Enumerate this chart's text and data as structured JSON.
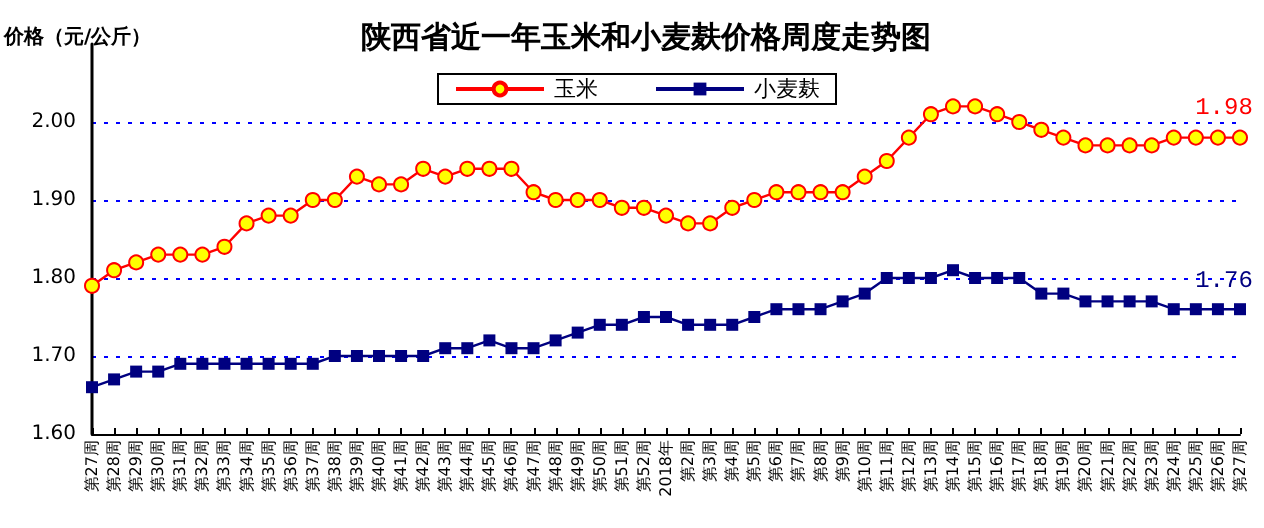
{
  "chart_data": {
    "type": "line",
    "title": "陕西省近一年玉米和小麦麸价格周度走势图",
    "ylabel": "价格（元/公斤）",
    "categories": [
      "第27周",
      "第28周",
      "第29周",
      "第30周",
      "第31周",
      "第32周",
      "第33周",
      "第34周",
      "第35周",
      "第36周",
      "第37周",
      "第38周",
      "第39周",
      "第40周",
      "第41周",
      "第42周",
      "第43周",
      "第44周",
      "第45周",
      "第46周",
      "第47周",
      "第48周",
      "第49周",
      "第50周",
      "第51周",
      "第52周",
      "2018年",
      "第2周",
      "第3周",
      "第4周",
      "第5周",
      "第6周",
      "第7周",
      "第8周",
      "第9周",
      "第10周",
      "第11周",
      "第12周",
      "第13周",
      "第14周",
      "第15周",
      "第16周",
      "第17周",
      "第18周",
      "第19周",
      "第20周",
      "第21周",
      "第22周",
      "第23周",
      "第24周",
      "第25周",
      "第26周",
      "第27周"
    ],
    "series": [
      {
        "name": "玉米",
        "color": "#ff0000",
        "marker": "circle",
        "values": [
          1.79,
          1.81,
          1.82,
          1.83,
          1.83,
          1.83,
          1.84,
          1.87,
          1.88,
          1.88,
          1.9,
          1.9,
          1.93,
          1.92,
          1.92,
          1.94,
          1.93,
          1.94,
          1.94,
          1.94,
          1.91,
          1.9,
          1.9,
          1.9,
          1.89,
          1.89,
          1.88,
          1.87,
          1.87,
          1.89,
          1.9,
          1.91,
          1.91,
          1.91,
          1.91,
          1.93,
          1.95,
          1.98,
          2.01,
          2.02,
          2.02,
          2.01,
          2.0,
          1.99,
          1.98,
          1.97,
          1.97,
          1.97,
          1.97,
          1.98,
          1.98,
          1.98,
          1.98
        ],
        "value_labels": [
          null,
          null,
          null,
          null,
          null,
          null,
          null,
          null,
          null,
          null,
          null,
          null,
          null,
          null,
          null,
          null,
          null,
          null,
          null,
          null,
          null,
          null,
          null,
          null,
          null,
          null,
          null,
          null,
          null,
          null,
          null,
          null,
          null,
          null,
          null,
          null,
          null,
          null,
          null,
          null,
          null,
          null,
          null,
          null,
          null,
          null,
          null,
          null,
          null,
          null,
          null,
          null,
          "1.98"
        ]
      },
      {
        "name": "小麦麸",
        "color": "#000080",
        "marker": "square",
        "values": [
          1.66,
          1.67,
          1.68,
          1.68,
          1.69,
          1.69,
          1.69,
          1.69,
          1.69,
          1.69,
          1.69,
          1.7,
          1.7,
          1.7,
          1.7,
          1.7,
          1.71,
          1.71,
          1.72,
          1.71,
          1.71,
          1.72,
          1.73,
          1.74,
          1.74,
          1.75,
          1.75,
          1.74,
          1.74,
          1.74,
          1.75,
          1.76,
          1.76,
          1.76,
          1.77,
          1.78,
          1.8,
          1.8,
          1.8,
          1.81,
          1.8,
          1.8,
          1.8,
          1.78,
          1.78,
          1.77,
          1.77,
          1.77,
          1.77,
          1.76,
          1.76,
          1.76,
          1.76
        ],
        "value_labels": [
          null,
          null,
          null,
          null,
          null,
          null,
          null,
          null,
          null,
          null,
          null,
          null,
          null,
          null,
          null,
          null,
          null,
          null,
          null,
          null,
          null,
          null,
          null,
          null,
          null,
          null,
          null,
          null,
          null,
          null,
          null,
          null,
          null,
          null,
          null,
          null,
          null,
          null,
          null,
          null,
          null,
          null,
          null,
          null,
          null,
          null,
          null,
          null,
          null,
          null,
          null,
          null,
          "1.76"
        ]
      }
    ],
    "ylim": [
      1.6,
      2.1
    ],
    "yticks": [
      {
        "value": 1.6,
        "label": "1.60"
      },
      {
        "value": 1.7,
        "label": "1.70"
      },
      {
        "value": 1.8,
        "label": "1.80"
      },
      {
        "value": 1.9,
        "label": "1.90"
      },
      {
        "value": 2.0,
        "label": "2.00"
      }
    ],
    "grid": "y",
    "legend": "top right"
  }
}
